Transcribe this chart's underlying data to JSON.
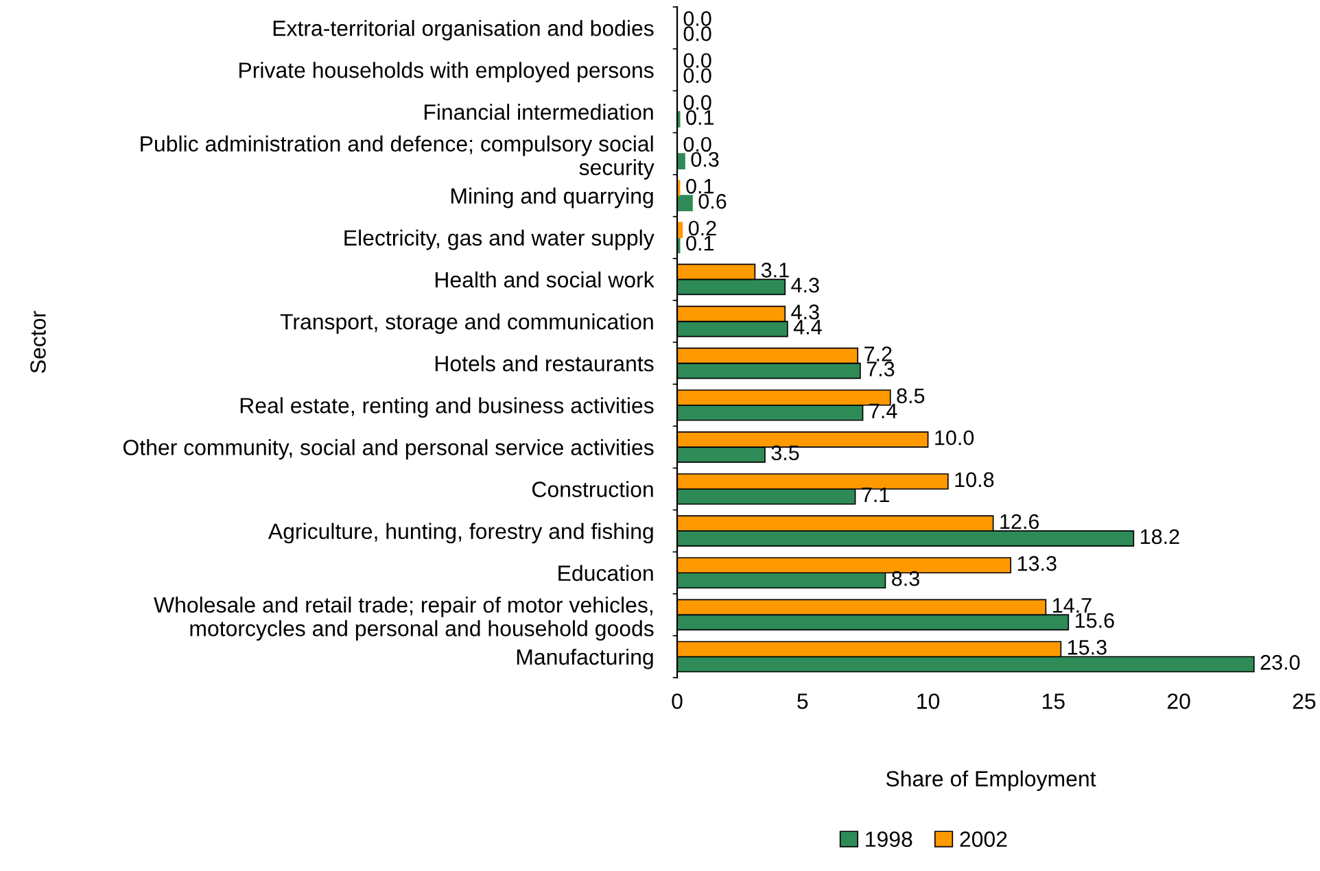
{
  "chart_data": {
    "type": "bar",
    "orientation": "horizontal",
    "xlabel": "Share of Employment",
    "ylabel": "Sector",
    "categories": [
      "Extra-territorial organisation and bodies",
      "Private households with employed persons",
      "Financial intermediation",
      "Public administration and defence; compulsory social\nsecurity",
      "Mining and quarrying",
      "Electricity, gas and water supply",
      "Health and social work",
      "Transport, storage and communication",
      "Hotels and restaurants",
      "Real estate, renting and business activities",
      "Other community, social and personal service activities",
      "Construction",
      "Agriculture, hunting, forestry and fishing",
      "Education",
      "Wholesale and retail trade; repair of motor vehicles,\nmotorcycles and personal and household goods",
      "Manufacturing"
    ],
    "series": [
      {
        "name": "1998",
        "color": "#2e8b57",
        "values": [
          0,
          0,
          0.1,
          0.3,
          0.6,
          0.1,
          4.3,
          4.4,
          7.3,
          7.4,
          3.5,
          7.1,
          18.2,
          8.3,
          15.6,
          23
        ],
        "value_labels": [
          "0.0",
          "0.0",
          "0.1",
          "0.3",
          "0.6",
          "0.1",
          "4.3",
          "4.4",
          "7.3",
          "7.4",
          "3.5",
          "7.1",
          "18.2",
          "8.3",
          "15.6",
          "23.0"
        ]
      },
      {
        "name": "2002",
        "color": "#ff9900",
        "values": [
          0,
          0,
          0,
          0,
          0.1,
          0.2,
          3.1,
          4.3,
          7.2,
          8.5,
          10,
          10.8,
          12.6,
          13.3,
          14.7,
          15.3
        ],
        "value_labels": [
          "0.0",
          "0.0",
          "0.0",
          "0.0",
          "0.1",
          "0.2",
          "3.1",
          "4.3",
          "7.2",
          "8.5",
          "10.0",
          "10.8",
          "12.6",
          "13.3",
          "14.7",
          "15.3"
        ]
      }
    ],
    "xlim": [
      0,
      25
    ],
    "xticks": [
      0,
      5,
      10,
      15,
      20,
      25
    ],
    "grid": false,
    "legend": "bottom"
  }
}
